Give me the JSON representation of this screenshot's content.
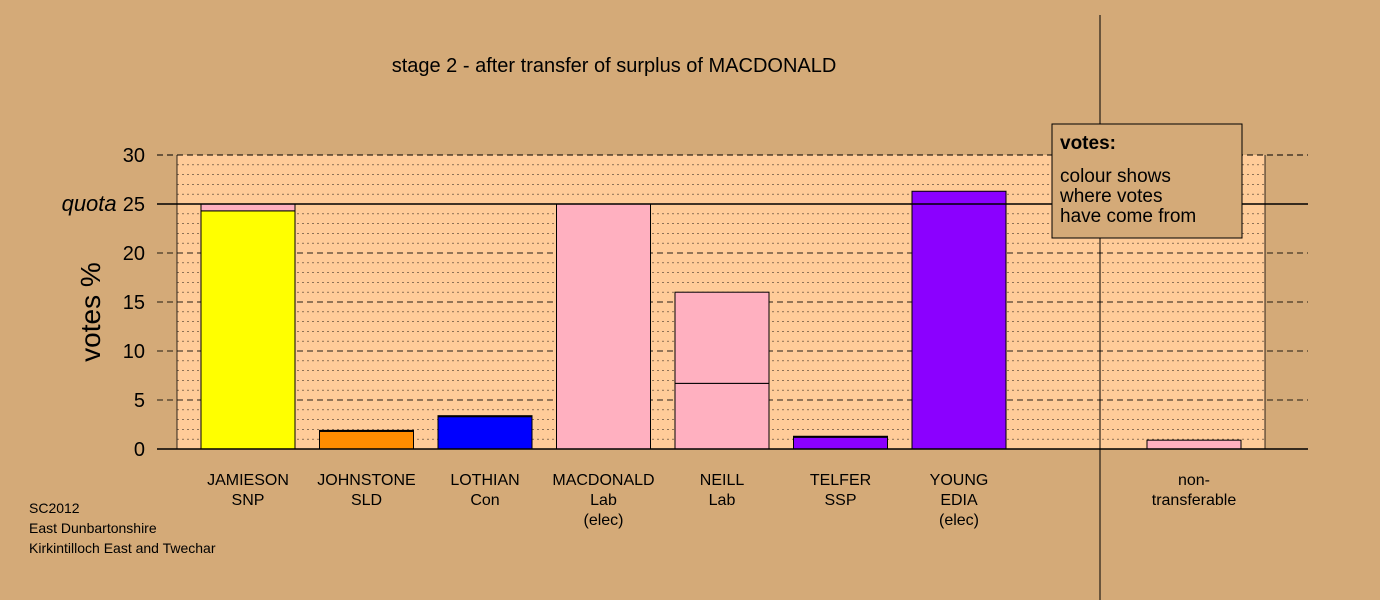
{
  "chart_data": {
    "type": "bar",
    "title": "stage 2 - after transfer of surplus of MACDONALD",
    "ylabel": "votes %",
    "ylim": [
      0,
      30
    ],
    "yticks": [
      0,
      5,
      10,
      15,
      20,
      25,
      30
    ],
    "quota": 25,
    "quota_label": "quota",
    "categories": [
      {
        "lines": [
          "JAMIESON",
          "SNP"
        ],
        "segments": [
          {
            "value": 24.3,
            "color": "#ffff00"
          },
          {
            "value": 0.7,
            "color": "#ffb0c0"
          }
        ]
      },
      {
        "lines": [
          "JOHNSTONE",
          "SLD"
        ],
        "segments": [
          {
            "value": 1.8,
            "color": "#ff8c00"
          },
          {
            "value": 0.1,
            "color": "#ffb0c0"
          }
        ]
      },
      {
        "lines": [
          "LOTHIAN",
          "Con"
        ],
        "segments": [
          {
            "value": 3.3,
            "color": "#0000ff"
          },
          {
            "value": 0.1,
            "color": "#ffb0c0"
          }
        ]
      },
      {
        "lines": [
          "MACDONALD",
          "Lab",
          "(elec)"
        ],
        "segments": [
          {
            "value": 25.0,
            "color": "#ffb0c0"
          }
        ]
      },
      {
        "lines": [
          "NEILL",
          "Lab"
        ],
        "segments": [
          {
            "value": 6.7,
            "color": "#ffb0c0"
          },
          {
            "value": 9.3,
            "color": "#ffb0c0"
          }
        ]
      },
      {
        "lines": [
          "TELFER",
          "SSP"
        ],
        "segments": [
          {
            "value": 1.2,
            "color": "#8b00ff"
          },
          {
            "value": 0.1,
            "color": "#ffb0c0"
          }
        ]
      },
      {
        "lines": [
          "YOUNG",
          "EDIA",
          "(elec)"
        ],
        "segments": [
          {
            "value": 26.3,
            "color": "#8b00ff"
          }
        ]
      }
    ],
    "nontransferable": {
      "lines": [
        "non-",
        "transferable"
      ],
      "value": 0.9,
      "color": "#ffb0c0"
    },
    "grid": "dashed",
    "legend": {
      "title": "votes:",
      "lines": [
        "colour shows",
        "where votes",
        "have come from"
      ],
      "position": "top-right"
    },
    "colors": {
      "background": "#d4aa78",
      "plot_background": "#ffcc99"
    }
  },
  "footer": [
    "SC2012",
    "East Dunbartonshire",
    "Kirkintilloch East and Twechar"
  ]
}
